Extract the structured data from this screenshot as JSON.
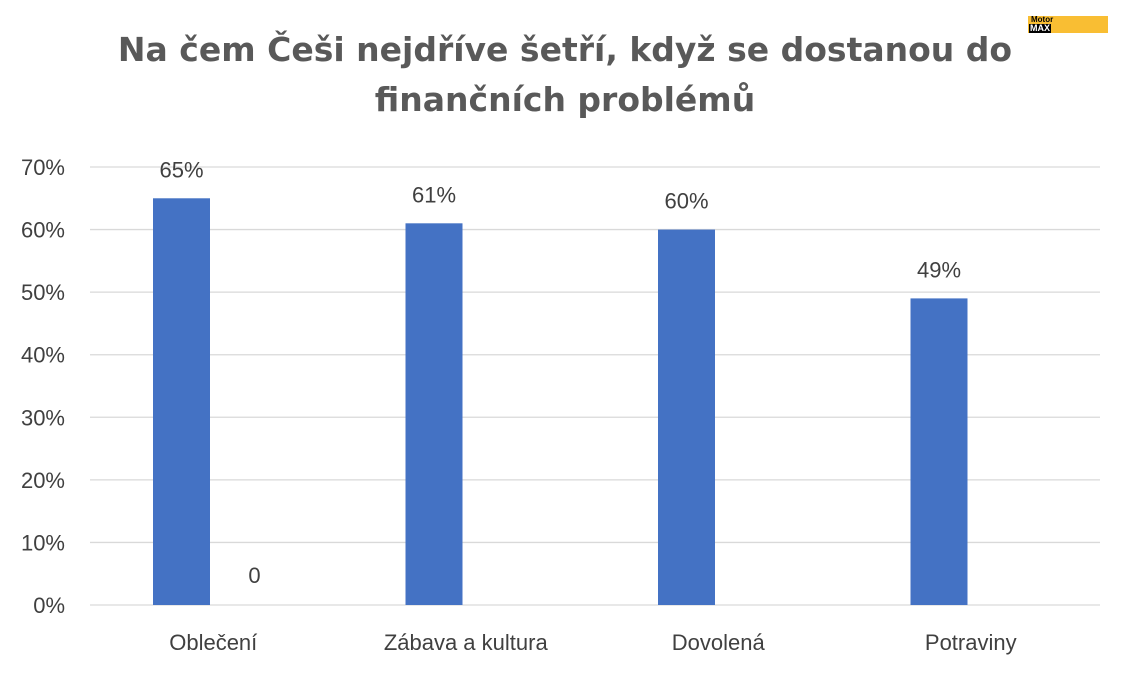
{
  "title": "Na čem Češi nejdříve šetří, když se dostanou do finančních problémů",
  "logo": {
    "line1": "Motor",
    "line2": "MAX"
  },
  "colors": {
    "bar": "#4472c4",
    "grid": "#d9d9d9",
    "text": "#404040",
    "title": "#595959"
  },
  "chart_data": {
    "type": "bar",
    "title": "Na čem Češi nejdříve šetří, když se dostanou do finančních problémů",
    "categories": [
      "Oblečení",
      "Zábava a kultura",
      "Dovolená",
      "Potraviny"
    ],
    "series": [
      {
        "values": [
          65,
          61,
          60,
          49
        ],
        "labels": [
          "65%",
          "61%",
          "60%",
          "49%"
        ]
      },
      {
        "values": [
          0,
          null,
          null,
          null
        ],
        "labels": [
          "0",
          "",
          "",
          ""
        ]
      }
    ],
    "y_ticks": [
      "0%",
      "10%",
      "20%",
      "30%",
      "40%",
      "50%",
      "60%",
      "70%"
    ],
    "ylim": [
      0,
      70
    ],
    "grid": true,
    "legend": "none"
  }
}
